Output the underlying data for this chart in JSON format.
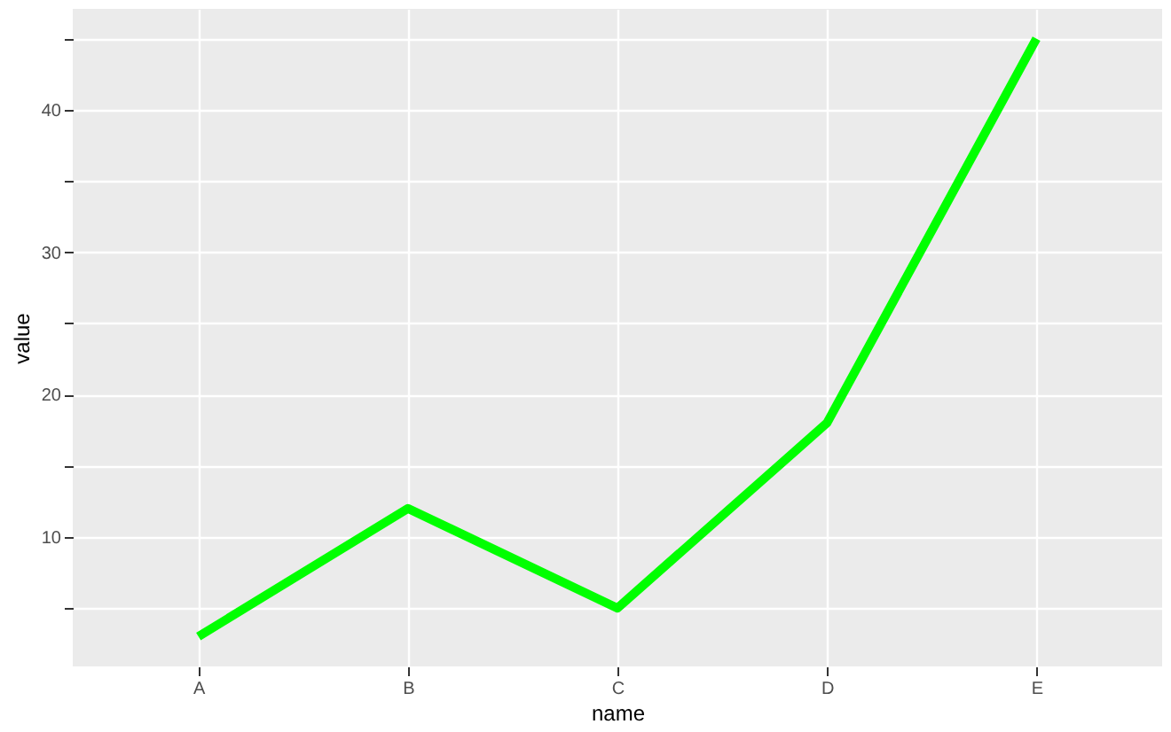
{
  "chart_data": {
    "type": "line",
    "xlabel": "name",
    "ylabel": "value",
    "categories": [
      "A",
      "B",
      "C",
      "D",
      "E"
    ],
    "series": [
      {
        "color": "#00ff00",
        "values": [
          3,
          12,
          5,
          18,
          45
        ]
      }
    ],
    "ylim": [
      0.9,
      47.1
    ],
    "yticks": [
      {
        "value": 5,
        "label": null
      },
      10,
      {
        "value": 15,
        "label": null
      },
      20,
      {
        "value": 25,
        "label": null
      },
      30,
      {
        "value": 35,
        "label": null
      },
      40,
      {
        "value": 45,
        "label": null
      }
    ],
    "grid": true,
    "marker": "none",
    "line_style": "solid"
  }
}
